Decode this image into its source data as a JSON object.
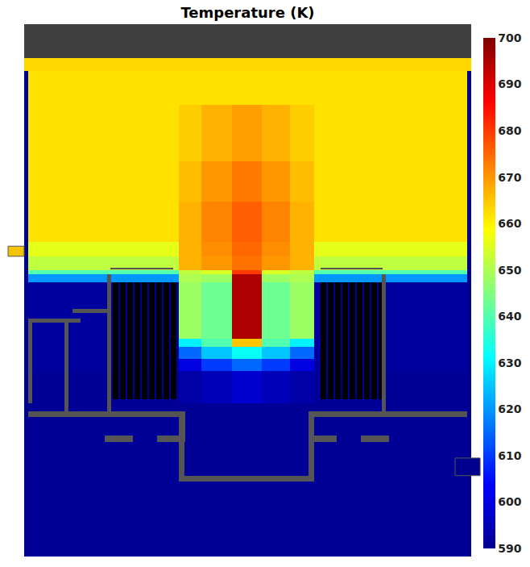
{
  "chart_data": {
    "type": "heatmap",
    "title": "Temperature (K)",
    "x": [
      0,
      5,
      107,
      192,
      220,
      258,
      295,
      330,
      360,
      445,
      550,
      555
    ],
    "y": [
      0,
      190,
      230,
      245,
      260,
      270,
      340,
      350,
      355,
      372,
      390,
      440,
      490,
      560,
      602,
      618,
      660
    ],
    "z": [
      [
        590,
        591,
        591,
        591,
        591,
        591,
        591,
        591,
        591,
        591,
        590
      ],
      [
        590,
        591,
        591,
        593,
        595,
        598,
        595,
        593,
        591,
        591,
        590
      ],
      [
        590,
        592,
        592,
        600,
        610,
        615,
        610,
        600,
        592,
        592,
        590
      ],
      [
        590,
        592,
        592,
        615,
        625,
        632,
        625,
        615,
        592,
        592,
        590
      ],
      [
        590,
        592,
        592,
        630,
        640,
        665,
        640,
        630,
        592,
        592,
        590
      ],
      [
        590,
        592,
        592,
        648,
        643,
        695,
        643,
        648,
        592,
        592,
        590
      ],
      [
        590,
        620,
        620,
        650,
        648,
        695,
        648,
        650,
        620,
        620,
        590
      ],
      [
        590,
        640,
        640,
        652,
        655,
        680,
        655,
        652,
        640,
        640,
        590
      ],
      [
        590,
        652,
        652,
        667,
        670,
        674,
        670,
        667,
        652,
        652,
        590
      ],
      [
        590,
        656,
        656,
        667,
        671,
        675,
        671,
        667,
        656,
        656,
        590
      ],
      [
        590,
        662,
        662,
        667,
        672,
        676,
        672,
        667,
        662,
        662,
        590
      ],
      [
        590,
        662,
        662,
        666,
        670,
        673,
        670,
        666,
        662,
        662,
        590
      ],
      [
        590,
        662,
        662,
        664,
        667,
        669,
        667,
        664,
        662,
        662,
        590
      ],
      [
        590,
        662,
        662,
        662,
        662,
        662,
        662,
        662,
        662,
        662,
        590
      ],
      [
        663,
        663,
        663,
        663,
        663,
        663,
        663,
        663,
        663,
        663,
        663
      ],
      [
        null,
        null,
        null,
        null,
        null,
        null,
        null,
        null,
        null,
        null,
        null
      ]
    ],
    "xlim": [
      0,
      555
    ],
    "ylim": [
      0,
      660
    ],
    "zlim": [
      590,
      700
    ],
    "zticks": [
      590,
      600,
      610,
      620,
      630,
      640,
      650,
      660,
      670,
      680,
      690,
      700
    ],
    "tick_labels": false,
    "grid": false
  }
}
